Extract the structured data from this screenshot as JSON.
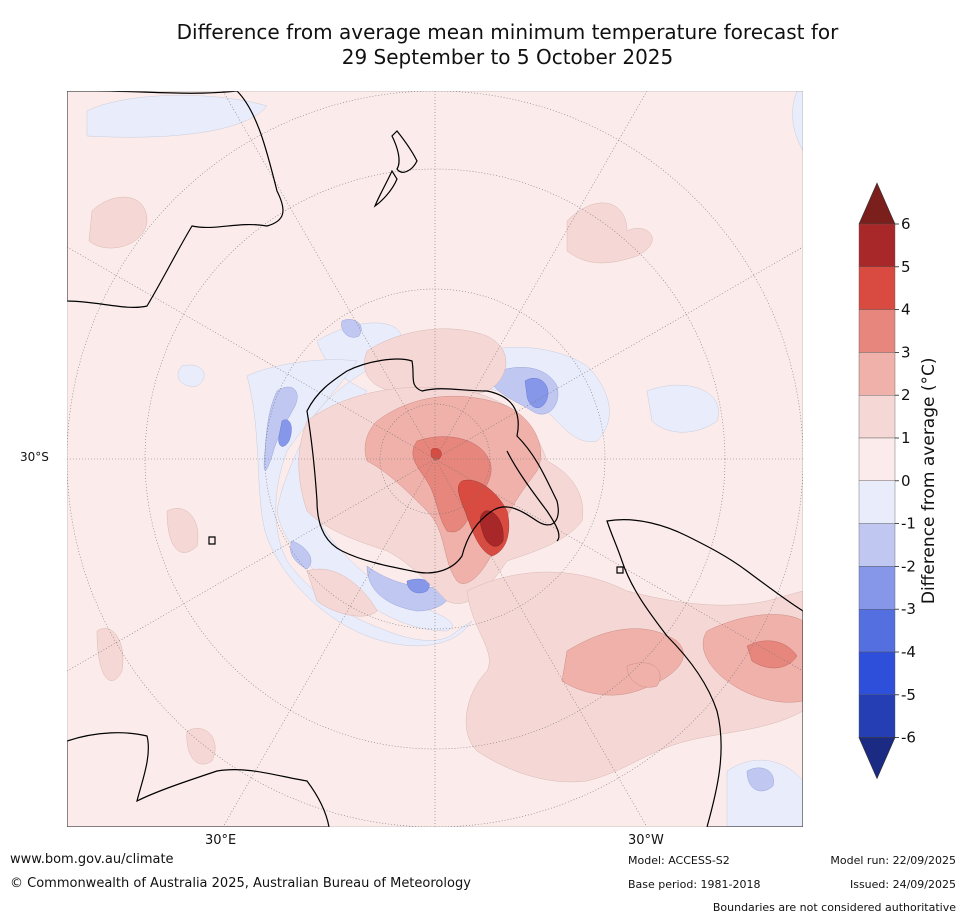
{
  "title": {
    "line1": "Difference from average mean minimum temperature forecast for",
    "line2": "29 September to 5 October 2025"
  },
  "map": {
    "lat_label": "30°S",
    "lon_labels": [
      "30°E",
      "30°W"
    ],
    "ocean_color": "#fbeceb"
  },
  "colorbar": {
    "label": "Difference from average (°C)",
    "ticks": [
      "6",
      "5",
      "4",
      "3",
      "2",
      "1",
      "0",
      "-1",
      "-2",
      "-3",
      "-4",
      "-5",
      "-6"
    ],
    "colors_top_to_bottom": [
      "#a8282a",
      "#d94b40",
      "#e7867c",
      "#efb1aa",
      "#f5d8d5",
      "#fbeceb",
      "#e9ecfb",
      "#c0c8f2",
      "#8697ea",
      "#5470e0",
      "#2e4fd9",
      "#253eb4"
    ],
    "extend_high_color": "#7a1f1c",
    "extend_low_color": "#1b2a82"
  },
  "footer": {
    "url": "www.bom.gov.au/climate",
    "copyright": "© Commonwealth of Australia 2025, Australian Bureau of Meteorology",
    "model": "Model: ACCESS-S2",
    "base_period": "Base period: 1981-2018",
    "model_run": "Model run: 22/09/2025",
    "issued": "Issued: 24/09/2025",
    "disclaimer": "Boundaries are not considered authoritative"
  }
}
